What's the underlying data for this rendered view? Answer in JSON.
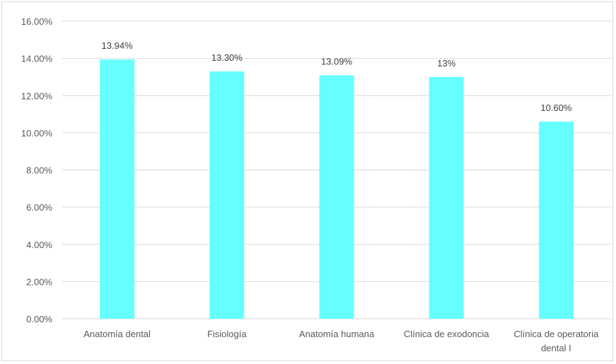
{
  "chart_data": {
    "type": "bar",
    "categories": [
      "Anatomía dental",
      "Fisiología",
      "Anatomía humana",
      "Clínica de exodoncia",
      "Clínica de operatoria dental I"
    ],
    "values": [
      13.94,
      13.3,
      13.09,
      13.0,
      10.6
    ],
    "value_labels": [
      "13.94%",
      "13.30%",
      "13.09%",
      "13%",
      "10.60%"
    ],
    "category_label_lines": [
      [
        "Anatomía dental"
      ],
      [
        "Fisiología"
      ],
      [
        "Anatomía humana"
      ],
      [
        "Clínica de exodoncia"
      ],
      [
        "Clínica de operatoria",
        "dental I"
      ]
    ],
    "title": "",
    "xlabel": "",
    "ylabel": "",
    "ylim": [
      0,
      16
    ],
    "yticks": [
      0,
      2,
      4,
      6,
      8,
      10,
      12,
      14,
      16
    ],
    "ytick_labels": [
      "0.00%",
      "2.00%",
      "4.00%",
      "6.00%",
      "8.00%",
      "10.00%",
      "12.00%",
      "14.00%",
      "16.00%"
    ],
    "grid": true,
    "legend": "none",
    "colors": {
      "bar": "#66FFFF",
      "grid": "#D9D9D9",
      "text": "#595959"
    }
  }
}
